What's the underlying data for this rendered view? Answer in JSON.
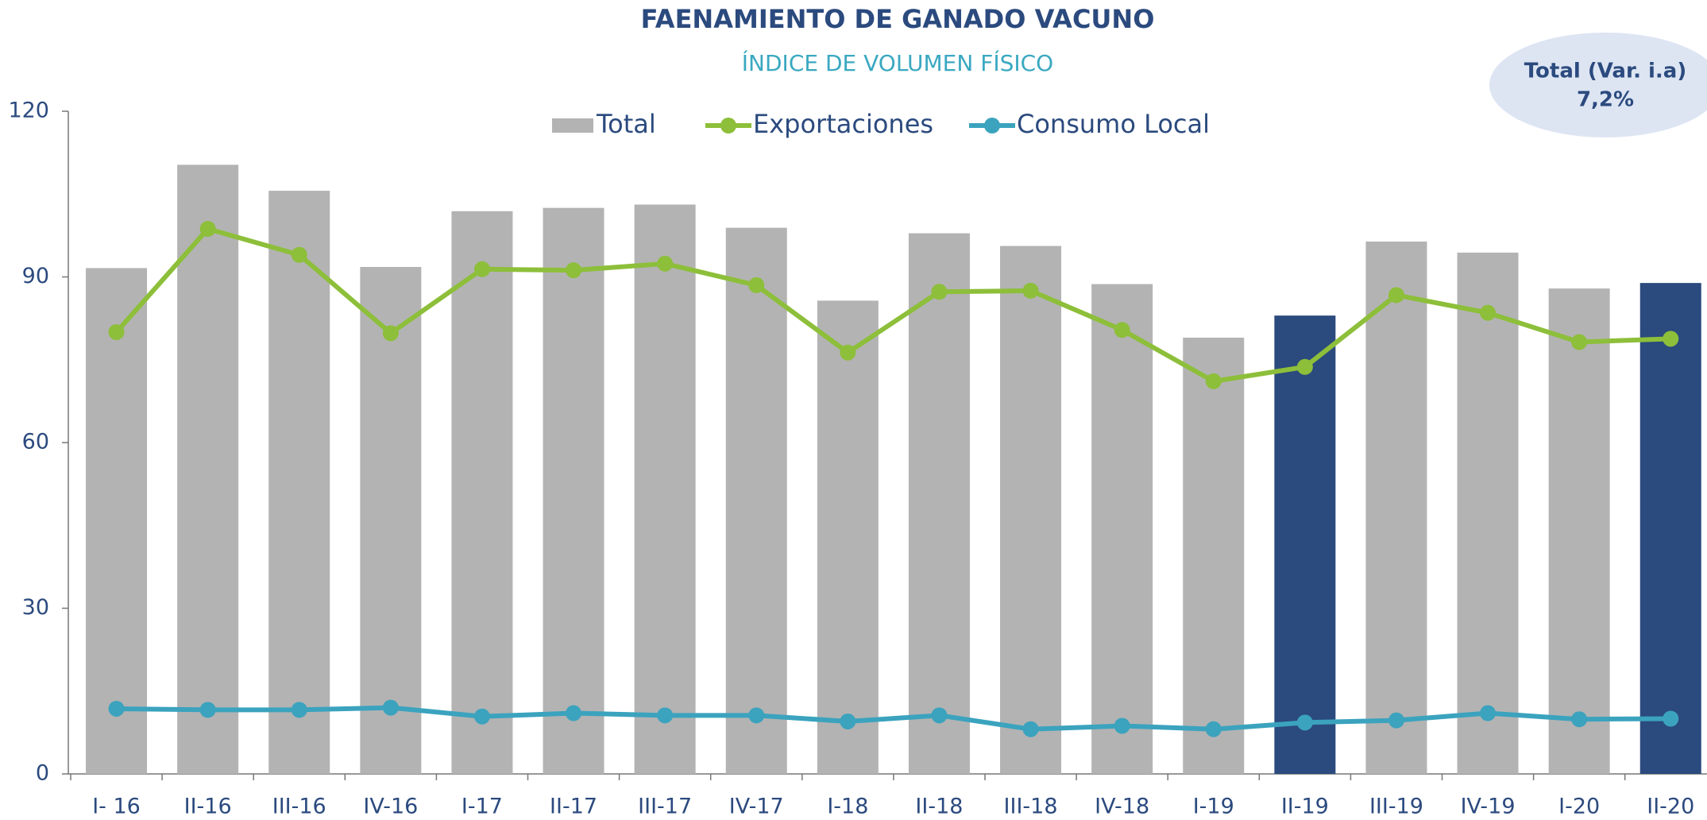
{
  "chart_data": {
    "type": "bar_line",
    "title": "FAENAMIENTO DE GANADO VACUNO",
    "subtitle": "ÍNDICE DE VOLUMEN FÍSICO",
    "annotation": {
      "label": "Total (Var. i.a)",
      "value": "7,2%"
    },
    "categories": [
      "I- 16",
      "II-16",
      "III-16",
      "IV-16",
      "I-17",
      "II-17",
      "III-17",
      "IV-17",
      "I-18",
      "II-18",
      "III-18",
      "IV-18",
      "I-19",
      "II-19",
      "III-19",
      "IV-19",
      "I-20",
      "II-20"
    ],
    "series": [
      {
        "name": "Total",
        "type": "bar",
        "color": "#b3b3b3",
        "colors": [
          "#b3b3b3",
          "#b3b3b3",
          "#b3b3b3",
          "#b3b3b3",
          "#b3b3b3",
          "#b3b3b3",
          "#b3b3b3",
          "#b3b3b3",
          "#b3b3b3",
          "#b3b3b3",
          "#b3b3b3",
          "#b3b3b3",
          "#b3b3b3",
          "#2b4a7e",
          "#b3b3b3",
          "#b3b3b3",
          "#b3b3b3",
          "#2b4a7e"
        ],
        "values": [
          91.6,
          110.3,
          105.6,
          91.8,
          101.9,
          102.5,
          103.1,
          98.9,
          85.7,
          97.9,
          95.6,
          88.7,
          79.0,
          83.0,
          96.4,
          94.4,
          87.9,
          88.9
        ]
      },
      {
        "name": "Exportaciones",
        "type": "line",
        "color": "#8dbf3a",
        "values": [
          80.0,
          98.7,
          94.0,
          79.8,
          91.4,
          91.2,
          92.4,
          88.5,
          76.3,
          87.3,
          87.5,
          80.4,
          71.1,
          73.7,
          86.7,
          83.5,
          78.2,
          78.8
        ]
      },
      {
        "name": "Consumo Local",
        "type": "line",
        "color": "#3ba3be",
        "values": [
          11.8,
          11.6,
          11.6,
          12.0,
          10.4,
          11.0,
          10.6,
          10.6,
          9.5,
          10.6,
          8.1,
          8.7,
          8.1,
          9.3,
          9.7,
          11.0,
          9.9,
          10.0
        ]
      }
    ],
    "ylim": [
      0,
      120
    ],
    "yticks": [
      0,
      30,
      60,
      90,
      120
    ],
    "grid": false,
    "legend": "top"
  }
}
